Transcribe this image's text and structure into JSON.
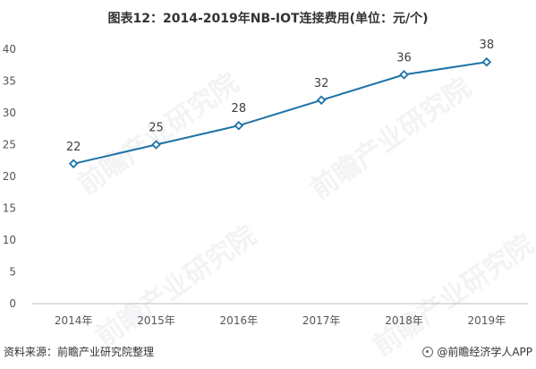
{
  "chart_data": {
    "type": "line",
    "title": "图表12：2014-2019年NB-IOT连接费用(单位：元/个)",
    "categories": [
      "2014年",
      "2015年",
      "2016年",
      "2017年",
      "2018年",
      "2019年"
    ],
    "series": [
      {
        "values": [
          22,
          25,
          28,
          32,
          36,
          38
        ],
        "color": "#1e73a6"
      }
    ],
    "data_labels": [
      "22",
      "25",
      "28",
      "32",
      "36",
      "38"
    ],
    "y_ticks": [
      "0",
      "5",
      "10",
      "15",
      "20",
      "25",
      "30",
      "35",
      "40"
    ],
    "ylim": [
      0,
      40
    ],
    "grid": false,
    "legend": "none",
    "marker": "diamond"
  },
  "watermark_text": "前瞻产业研究院",
  "footer": {
    "source": "资料来源：前瞻产业研究院整理",
    "brand": "@前瞻经济学人APP"
  }
}
